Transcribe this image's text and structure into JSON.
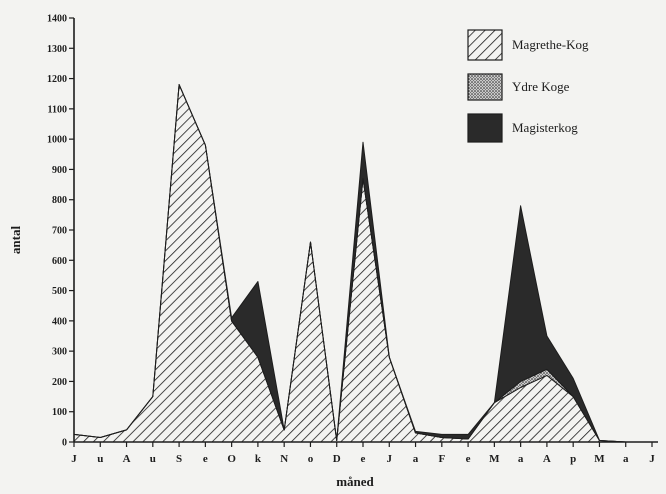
{
  "chart_data": {
    "type": "area",
    "stacked": true,
    "xlabel": "måned",
    "ylabel": "antal",
    "ylim": [
      0,
      1400
    ],
    "yticks": [
      0,
      100,
      200,
      300,
      400,
      500,
      600,
      700,
      800,
      900,
      1000,
      1100,
      1200,
      1300,
      1400
    ],
    "ytick_labels": [
      "0",
      "100",
      "200",
      "300",
      "400",
      "500",
      "600",
      "700",
      "800",
      "900",
      "1000",
      "1100",
      "1200",
      "1300",
      "1400"
    ],
    "categories": [
      "J",
      "u",
      "A",
      "u",
      "S",
      "e",
      "O",
      "k",
      "N",
      "o",
      "D",
      "e",
      "J",
      "a",
      "F",
      "e",
      "M",
      "a",
      "A",
      "p",
      "M",
      "a",
      "J"
    ],
    "legend_position": "top-right",
    "grid": false,
    "series": [
      {
        "name": "Magrethe-Kog",
        "pattern": "diagonal-hatch",
        "color": "#1d1d1d",
        "values": [
          25,
          15,
          40,
          150,
          1180,
          980,
          400,
          280,
          40,
          660,
          5,
          870,
          280,
          30,
          15,
          10,
          130,
          180,
          220,
          150,
          5,
          0,
          0
        ]
      },
      {
        "name": "Ydre Koge",
        "pattern": "dotted",
        "color": "#8a8a8a",
        "values": [
          0,
          0,
          0,
          0,
          0,
          0,
          0,
          0,
          0,
          0,
          0,
          0,
          0,
          0,
          0,
          0,
          0,
          20,
          20,
          0,
          0,
          0,
          0
        ]
      },
      {
        "name": "Magisterkog",
        "pattern": "solid",
        "color": "#2a2a2a",
        "values": [
          0,
          0,
          0,
          0,
          0,
          0,
          10,
          250,
          0,
          0,
          0,
          120,
          0,
          5,
          10,
          15,
          0,
          580,
          110,
          60,
          0,
          0,
          0
        ]
      }
    ]
  }
}
